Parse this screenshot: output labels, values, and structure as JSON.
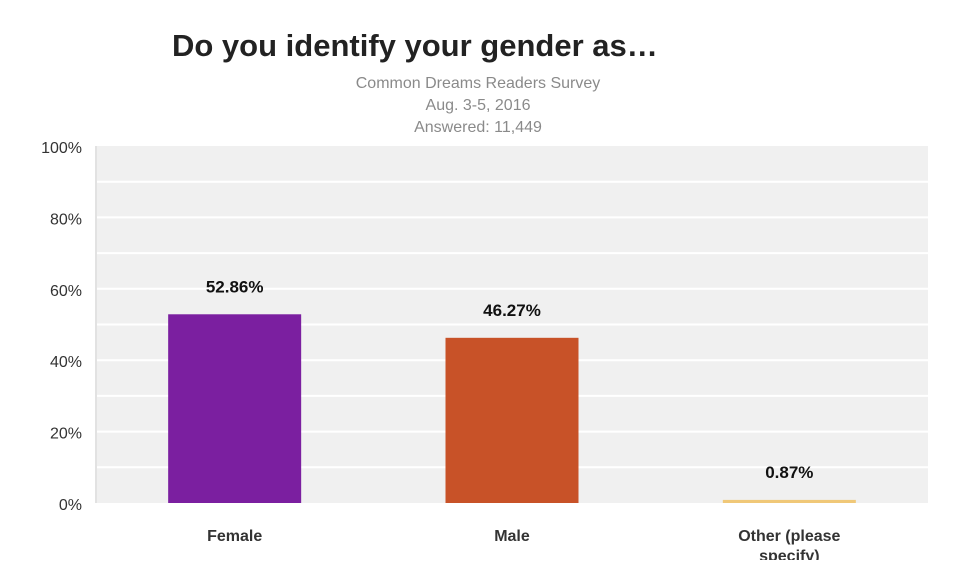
{
  "chart_data": {
    "type": "bar",
    "title": "Do you identify your gender as…",
    "subtitle": [
      "Common Dreams Readers Survey",
      "Aug. 3-5, 2016",
      "Answered:  11,449"
    ],
    "categories": [
      "Female",
      "Male",
      "Other (please specify)"
    ],
    "category_lines": [
      [
        "Female"
      ],
      [
        "Male"
      ],
      [
        "Other (please",
        "specify)"
      ]
    ],
    "values": [
      52.86,
      46.27,
      0.87
    ],
    "data_labels": [
      "52.86%",
      "46.27%",
      "0.87%"
    ],
    "colors": [
      "#7b1fa0",
      "#c85228",
      "#f0c878"
    ],
    "ylim": [
      0,
      100
    ],
    "yticks": [
      0,
      20,
      40,
      60,
      80,
      100
    ],
    "ytick_labels": [
      "0%",
      "20%",
      "40%",
      "60%",
      "80%",
      "100%"
    ],
    "grid": true,
    "plot_background": "#f0f0f0",
    "xlabel": "",
    "ylabel": ""
  }
}
